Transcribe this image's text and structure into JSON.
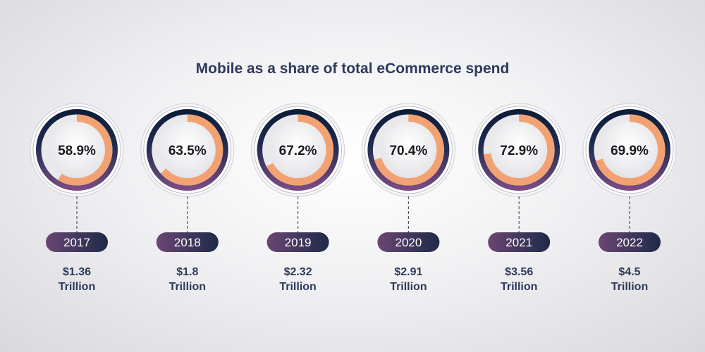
{
  "chart_data": {
    "type": "donut",
    "title": "Mobile as a share of total eCommerce spend",
    "categories": [
      "2017",
      "2018",
      "2019",
      "2020",
      "2021",
      "2022"
    ],
    "values": [
      58.9,
      63.5,
      67.2,
      70.4,
      72.9,
      69.9
    ],
    "value_labels": [
      "58.9%",
      "63.5%",
      "67.2%",
      "70.4%",
      "72.9%",
      "69.9%"
    ],
    "spend_amounts": [
      "$1.36",
      "$1.8",
      "$2.32",
      "$2.91",
      "$3.56",
      "$4.5"
    ],
    "spend_unit": "Trillion",
    "colors": {
      "ring_fill": "#f2a272",
      "ring_track": "#e9e9ec",
      "outer_top": "#0e1b36",
      "outer_bottom": "#7d4d86",
      "pill_left": "#6b4673",
      "pill_right": "#1e2a48",
      "text_dark": "#2e3a5c"
    }
  }
}
